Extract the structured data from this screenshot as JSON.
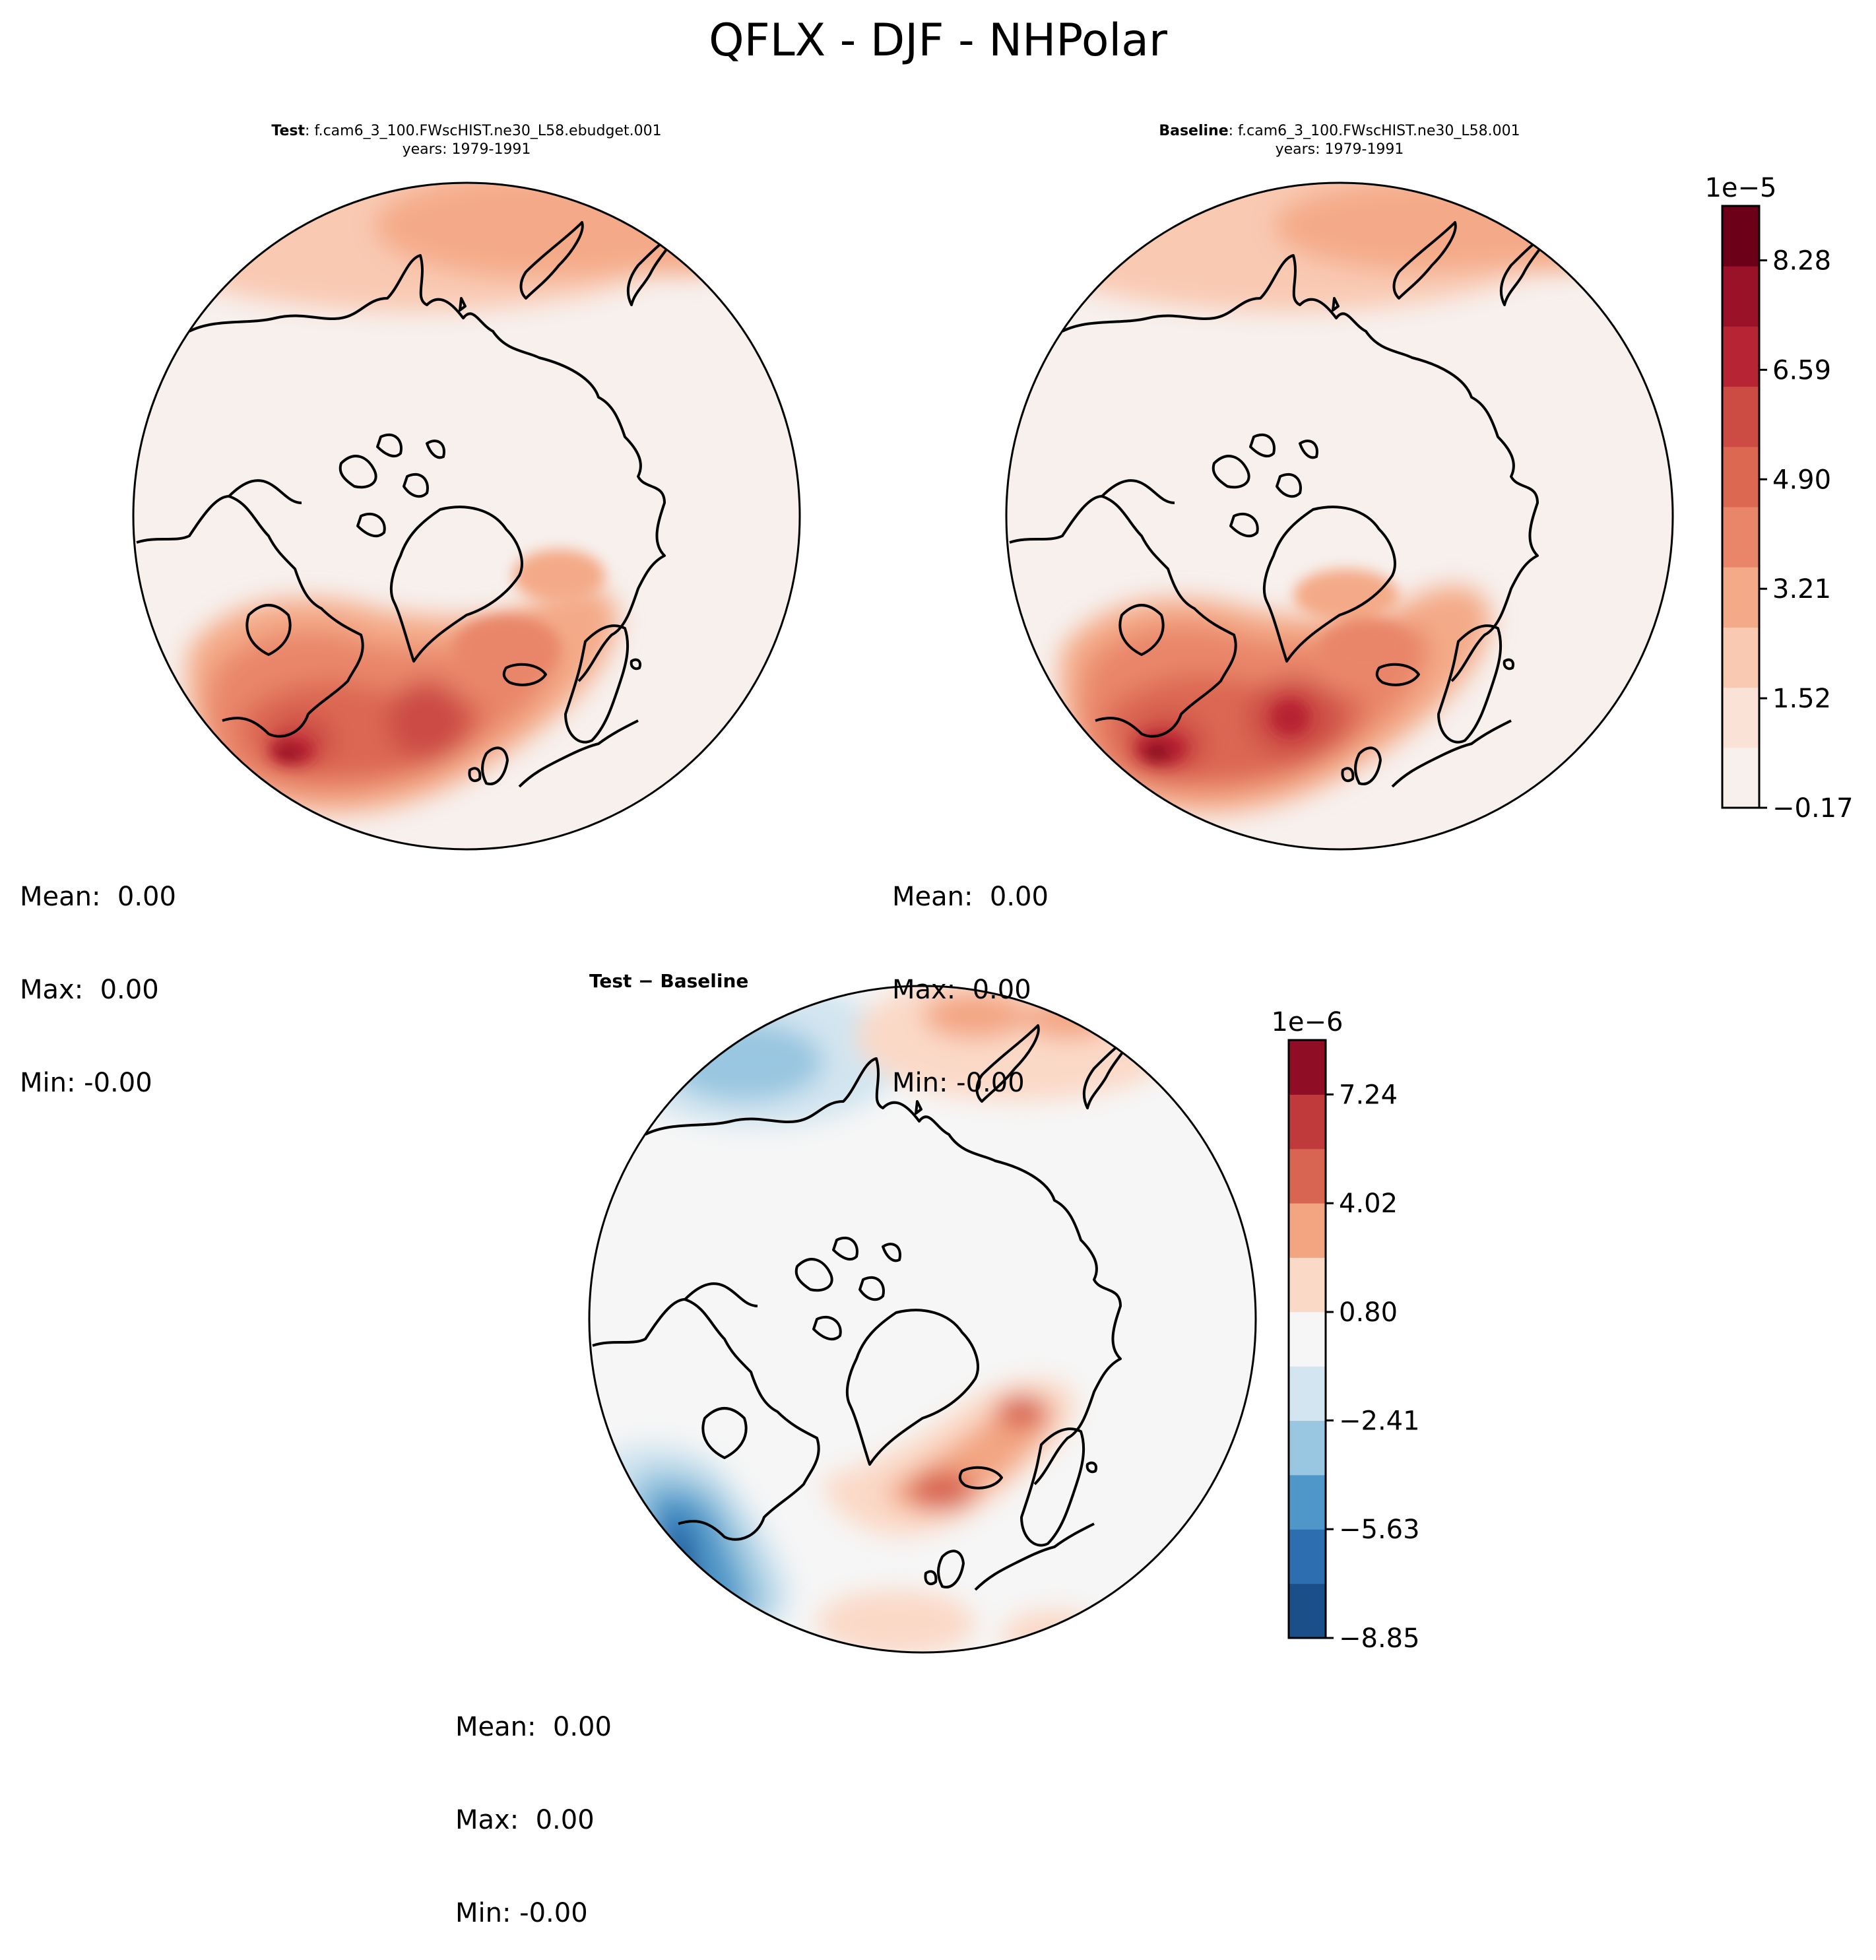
{
  "figure": {
    "title": "QFLX - DJF - NHPolar",
    "colors": {
      "land_line": "#000000",
      "sequential": [
        "#f7f0ed",
        "#fbe2d6",
        "#f9c9b2",
        "#f4aa88",
        "#e9866a",
        "#dc6852",
        "#cc4c44",
        "#b72433",
        "#9a1228",
        "#6d0019"
      ],
      "diverging": [
        "#1a4f8a",
        "#2c6eb0",
        "#4f97c8",
        "#99c6e0",
        "#d2e5f0",
        "#f6f6f6",
        "#fbd9c7",
        "#f3a582",
        "#d86551",
        "#c03a3b",
        "#8f0d25"
      ]
    }
  },
  "panels": [
    {
      "id": "test",
      "title_bold": "Test",
      "title_rest": ": f.cam6_3_100.FWscHIST.ne30_L58.ebudget.001",
      "subtitle": "years: 1979-1991",
      "stats": {
        "mean": "Mean:  0.00",
        "max": "Max:  0.00",
        "min": "Min: -0.00"
      },
      "variant": "seq"
    },
    {
      "id": "baseline",
      "title_bold": "Baseline",
      "title_rest": ": f.cam6_3_100.FWscHIST.ne30_L58.001",
      "subtitle": "years: 1979-1991",
      "stats": {
        "mean": "Mean:  0.00",
        "max": "Max:  0.00",
        "min": "Min: -0.00"
      },
      "variant": "seq2"
    },
    {
      "id": "diff",
      "title_bold": "Test − Baseline",
      "title_rest": "",
      "subtitle": "",
      "stats": {
        "mean": "Mean:  0.00",
        "max": "Max:  0.00",
        "min": "Min: -0.00"
      },
      "variant": "div"
    }
  ],
  "colorbars": [
    {
      "id": "seq",
      "exponent": "1e−5",
      "levels": 11,
      "ticks": [
        "−0.17",
        "1.52",
        "3.21",
        "4.90",
        "6.59",
        "8.28"
      ],
      "tick_values": [
        -0.17,
        1.52,
        3.21,
        4.9,
        6.59,
        8.28
      ],
      "range": [
        -0.17,
        9.12
      ]
    },
    {
      "id": "div",
      "exponent": "1e−6",
      "levels": 11,
      "ticks": [
        "−8.85",
        "−5.63",
        "−2.41",
        "0.80",
        "4.02",
        "7.24"
      ],
      "tick_values": [
        -8.85,
        -5.63,
        -2.41,
        0.8,
        4.02,
        7.24
      ],
      "range": [
        -8.85,
        8.85
      ]
    }
  ]
}
